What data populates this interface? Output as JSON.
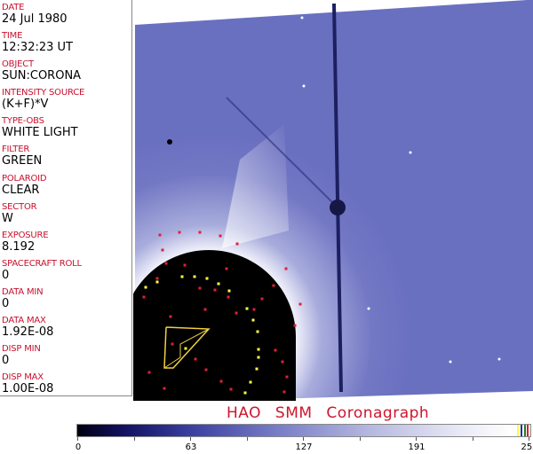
{
  "fields": [
    {
      "label": "DATE",
      "value": "24 Jul 1980"
    },
    {
      "label": "TIME",
      "value": "12:32:23 UT"
    },
    {
      "label": "OBJECT",
      "value": "SUN:CORONA"
    },
    {
      "label": "INTENSITY SOURCE",
      "value": "(K+F)*V"
    },
    {
      "label": "TYPE-OBS",
      "value": "WHITE LIGHT"
    },
    {
      "label": "FILTER",
      "value": "GREEN"
    },
    {
      "label": "POLAROID",
      "value": "CLEAR"
    },
    {
      "label": "SECTOR",
      "value": "W"
    },
    {
      "label": "EXPOSURE",
      "value": "8.192"
    },
    {
      "label": "SPACECRAFT ROLL",
      "value": "0"
    },
    {
      "label": "DATA MIN",
      "value": "0"
    },
    {
      "label": "DATA MAX",
      "value": "1.92E-08"
    },
    {
      "label": "DISP MIN",
      "value": "0"
    },
    {
      "label": "DISP MAX",
      "value": "1.00E-08"
    }
  ],
  "title": "HAO SMM Coronagraph",
  "colorbar": {
    "ticks": [
      "0",
      "63",
      "127",
      "191",
      "255"
    ],
    "min": 0,
    "max": 255
  },
  "colors": {
    "label": "#c8102e",
    "title": "#d0142c",
    "image_base": "#6a70c2",
    "occulter": "#000000",
    "markers_red": "#e0203a",
    "markers_yellow": "#ffff40"
  }
}
